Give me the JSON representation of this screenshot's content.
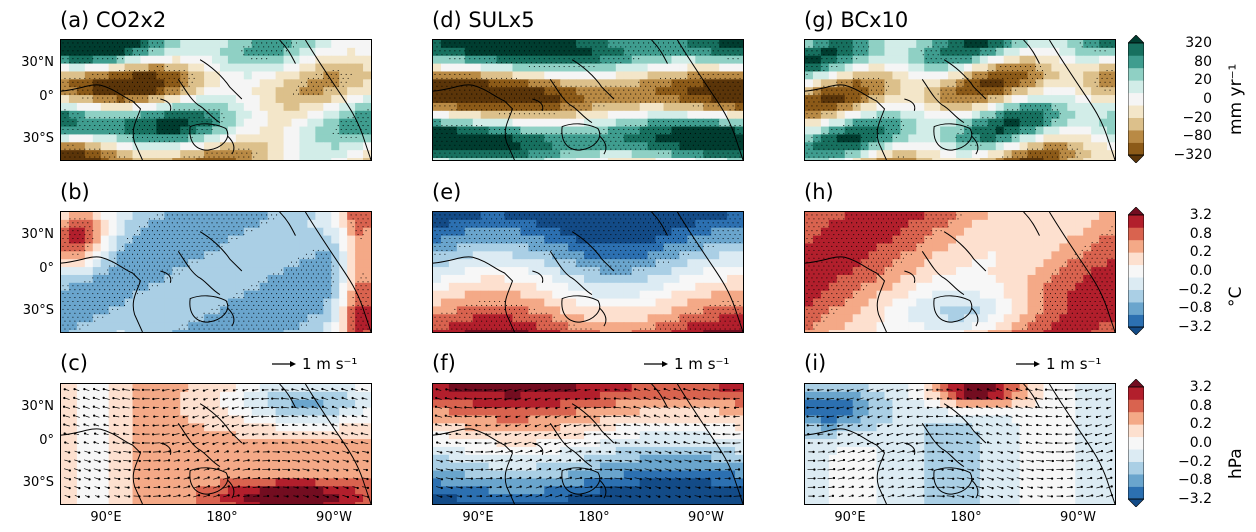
{
  "panels": [
    {
      "id": "a",
      "title": "(a) CO2x2",
      "field": "precip",
      "pattern": 1
    },
    {
      "id": "d",
      "title": "(d) SULx5",
      "field": "precip",
      "pattern": 2
    },
    {
      "id": "g",
      "title": "(g) BCx10",
      "field": "precip",
      "pattern": 3
    },
    {
      "id": "b",
      "title": "(b)",
      "field": "temp",
      "pattern": 1
    },
    {
      "id": "e",
      "title": "(e)",
      "field": "temp",
      "pattern": 2
    },
    {
      "id": "h",
      "title": "(h)",
      "field": "temp",
      "pattern": 3
    },
    {
      "id": "c",
      "title": "(c)",
      "field": "slp",
      "pattern": 1
    },
    {
      "id": "f",
      "title": "(f)",
      "field": "slp",
      "pattern": 2
    },
    {
      "id": "i",
      "title": "(i)",
      "field": "slp",
      "pattern": 3
    }
  ],
  "lat_ticks": [
    "30°N",
    "0°",
    "30°S"
  ],
  "lon_ticks": [
    "90°E",
    "180°",
    "90°W"
  ],
  "vector_reference": {
    "label": "1 m s⁻¹"
  },
  "colorbars": [
    {
      "id": "precip",
      "ticks": [
        "320",
        "80",
        "20",
        "0",
        "−20",
        "−80",
        "−320"
      ],
      "unit": "mm yr⁻¹",
      "colors": [
        "#5b3509",
        "#8c5a18",
        "#b98a45",
        "#dcc08b",
        "#f3e6c9",
        "#f5f5f5",
        "#d2ede8",
        "#8fd0c4",
        "#3f9d8f",
        "#17705f",
        "#003d30"
      ]
    },
    {
      "id": "temp",
      "ticks": [
        "3.2",
        "0.8",
        "0.2",
        "0.0",
        "−0.2",
        "−0.8",
        "−3.2"
      ],
      "unit": "°C",
      "colors": [
        "#134b87",
        "#2c70b1",
        "#6aa5cd",
        "#aacfe5",
        "#dcebf3",
        "#f7f7f7",
        "#fde0cf",
        "#f4a987",
        "#d9634f",
        "#b21f2c",
        "#730d20"
      ]
    },
    {
      "id": "slp",
      "ticks": [
        "3.2",
        "0.8",
        "0.2",
        "0.0",
        "−0.2",
        "−0.8",
        "−3.2"
      ],
      "unit": "hPa",
      "colors": [
        "#134b87",
        "#2c70b1",
        "#6aa5cd",
        "#aacfe5",
        "#dcebf3",
        "#f7f7f7",
        "#fde0cf",
        "#f4a987",
        "#d9634f",
        "#b21f2c",
        "#730d20"
      ]
    }
  ]
}
